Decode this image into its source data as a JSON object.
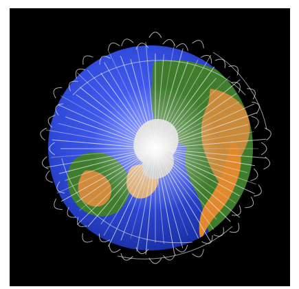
{
  "image": {
    "background": "#000000",
    "page_background": "#ffffff",
    "colors": {
      "ocean": "#2f49d8",
      "ocean_dark": "#152a9a",
      "land_green": "#3f7d2d",
      "land_tan": "#c98a3a",
      "land_orange": "#e08a2d",
      "ice": "#cfcfcf",
      "orbit_tracks": "#e8e8e8"
    },
    "layers": [
      "earth-globe",
      "continent-shapes",
      "polar-ice-cap",
      "satellite-orbit-tracks"
    ]
  }
}
